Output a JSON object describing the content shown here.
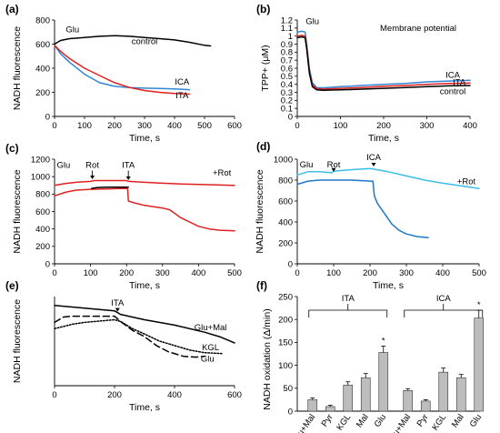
{
  "chart_data": [
    {
      "panel": "(a)",
      "type": "line",
      "xlabel": "Time, s",
      "ylabel": "NADH fluorescence",
      "xlim": [
        0,
        600
      ],
      "ylim": [
        0,
        800
      ],
      "xticks": [
        0,
        100,
        200,
        300,
        400,
        500,
        600
      ],
      "yticks": [
        0,
        200,
        400,
        600,
        800
      ],
      "annotations": [
        {
          "text": "Glu",
          "x": 60,
          "y": 700
        }
      ],
      "series": [
        {
          "name": "control",
          "color": "#000000",
          "label_at": [
            300,
            600
          ],
          "points": [
            [
              0,
              600
            ],
            [
              20,
              630
            ],
            [
              50,
              645
            ],
            [
              100,
              655
            ],
            [
              150,
              665
            ],
            [
              200,
              670
            ],
            [
              250,
              665
            ],
            [
              300,
              655
            ],
            [
              350,
              645
            ],
            [
              400,
              635
            ],
            [
              450,
              615
            ],
            [
              500,
              590
            ],
            [
              520,
              585
            ]
          ]
        },
        {
          "name": "ICA",
          "color": "#2f86d4",
          "label_at": [
            425,
            265
          ],
          "points": [
            [
              0,
              590
            ],
            [
              20,
              520
            ],
            [
              50,
              450
            ],
            [
              100,
              350
            ],
            [
              150,
              280
            ],
            [
              200,
              250
            ],
            [
              250,
              240
            ],
            [
              300,
              235
            ],
            [
              350,
              232
            ],
            [
              400,
              228
            ],
            [
              450,
              222
            ]
          ]
        },
        {
          "name": "ITA",
          "color": "#e02020",
          "label_at": [
            425,
            150
          ],
          "points": [
            [
              0,
              590
            ],
            [
              20,
              540
            ],
            [
              50,
              480
            ],
            [
              100,
              400
            ],
            [
              150,
              340
            ],
            [
              200,
              280
            ],
            [
              250,
              240
            ],
            [
              300,
              215
            ],
            [
              350,
              200
            ],
            [
              400,
              190
            ],
            [
              450,
              185
            ]
          ]
        }
      ]
    },
    {
      "panel": "(b)",
      "type": "line",
      "xlabel": "Time, s",
      "ylabel": "TPP+ (μM)",
      "title": "Membrane potential",
      "xlim": [
        0,
        400
      ],
      "ylim": [
        0,
        1.2
      ],
      "xticks": [
        0,
        100,
        200,
        300,
        400
      ],
      "yticks": [
        0,
        0.1,
        0.2,
        0.3,
        0.4,
        0.5,
        0.6,
        0.7,
        0.8,
        0.9,
        1,
        1.1,
        1.2
      ],
      "ytick_labels": [
        "0",
        "0.1",
        "0.2",
        "0.3",
        "0.4",
        "0.5",
        "0.6",
        "0.7",
        "0.8",
        "0.9",
        "1",
        "1.1",
        "1.2"
      ],
      "annotations": [
        {
          "text": "Glu",
          "x": 35,
          "y": 1.15
        }
      ],
      "series": [
        {
          "name": "ICA",
          "color": "#2f86d4",
          "label_at": [
            360,
            0.48
          ],
          "points": [
            [
              0,
              1.05
            ],
            [
              10,
              1.06
            ],
            [
              18,
              1.05
            ],
            [
              22,
              0.9
            ],
            [
              28,
              0.6
            ],
            [
              35,
              0.42
            ],
            [
              45,
              0.36
            ],
            [
              60,
              0.355
            ],
            [
              100,
              0.37
            ],
            [
              150,
              0.385
            ],
            [
              200,
              0.4
            ],
            [
              250,
              0.41
            ],
            [
              300,
              0.43
            ],
            [
              350,
              0.44
            ],
            [
              400,
              0.45
            ]
          ]
        },
        {
          "name": "ITA",
          "color": "#e02020",
          "label_at": [
            375,
            0.39
          ],
          "points": [
            [
              0,
              1.0
            ],
            [
              10,
              1.01
            ],
            [
              18,
              1.0
            ],
            [
              22,
              0.86
            ],
            [
              28,
              0.56
            ],
            [
              35,
              0.39
            ],
            [
              45,
              0.345
            ],
            [
              60,
              0.34
            ],
            [
              100,
              0.35
            ],
            [
              150,
              0.36
            ],
            [
              200,
              0.375
            ],
            [
              250,
              0.385
            ],
            [
              300,
              0.4
            ],
            [
              350,
              0.41
            ],
            [
              400,
              0.415
            ]
          ]
        },
        {
          "name": "control",
          "color": "#000000",
          "label_at": [
            360,
            0.28
          ],
          "points": [
            [
              0,
              0.98
            ],
            [
              10,
              0.99
            ],
            [
              18,
              0.98
            ],
            [
              22,
              0.84
            ],
            [
              28,
              0.54
            ],
            [
              35,
              0.37
            ],
            [
              45,
              0.33
            ],
            [
              60,
              0.325
            ],
            [
              100,
              0.33
            ],
            [
              150,
              0.34
            ],
            [
              200,
              0.35
            ],
            [
              250,
              0.36
            ],
            [
              300,
              0.37
            ],
            [
              350,
              0.38
            ],
            [
              400,
              0.385
            ]
          ]
        }
      ]
    },
    {
      "panel": "(c)",
      "type": "line",
      "xlabel": "Time, s",
      "ylabel": "NADH fluorescence",
      "xlim": [
        0,
        500
      ],
      "ylim": [
        0,
        1200
      ],
      "xticks": [
        0,
        100,
        200,
        300,
        400,
        500
      ],
      "yticks": [
        0,
        200,
        400,
        600,
        800,
        1000,
        1200
      ],
      "annotations": [
        {
          "text": "Glu",
          "x": 25,
          "y": 1100
        },
        {
          "text": "Rot",
          "x": 105,
          "y": 1100,
          "arrow_to": [
            105,
            970
          ]
        },
        {
          "text": "ITA",
          "x": 205,
          "y": 1100,
          "arrow_to": [
            205,
            960
          ]
        },
        {
          "text": "+Rot",
          "x": 465,
          "y": 1010
        }
      ],
      "series": [
        {
          "name": "+Rot",
          "color": "#e02020",
          "points": [
            [
              0,
              900
            ],
            [
              30,
              920
            ],
            [
              60,
              935
            ],
            [
              100,
              945
            ],
            [
              110,
              955
            ],
            [
              150,
              955
            ],
            [
              200,
              955
            ],
            [
              205,
              945
            ],
            [
              250,
              935
            ],
            [
              300,
              925
            ],
            [
              350,
              915
            ],
            [
              400,
              910
            ],
            [
              450,
              905
            ],
            [
              500,
              900
            ]
          ]
        },
        {
          "name": "",
          "color": "#e02020",
          "points": [
            [
              0,
              780
            ],
            [
              30,
              820
            ],
            [
              60,
              845
            ],
            [
              100,
              855
            ],
            [
              150,
              860
            ],
            [
              200,
              865
            ],
            [
              203,
              860
            ],
            [
              205,
              720
            ],
            [
              220,
              700
            ],
            [
              250,
              670
            ],
            [
              300,
              640
            ],
            [
              320,
              620
            ],
            [
              350,
              530
            ],
            [
              380,
              470
            ],
            [
              400,
              430
            ],
            [
              430,
              400
            ],
            [
              460,
              385
            ],
            [
              500,
              378
            ]
          ]
        },
        {
          "name": "",
          "color": "#000000",
          "points": [
            [
              103,
              865
            ],
            [
              120,
              875
            ],
            [
              150,
              880
            ],
            [
              200,
              880
            ],
            [
              205,
              880
            ]
          ]
        }
      ]
    },
    {
      "panel": "(d)",
      "type": "line",
      "xlabel": "Time, s",
      "ylabel": "NADH fluorescence",
      "xlim": [
        0,
        500
      ],
      "ylim": [
        0,
        1000
      ],
      "xticks": [
        0,
        100,
        200,
        300,
        400,
        500
      ],
      "yticks": [
        0,
        200,
        400,
        600,
        800,
        1000
      ],
      "annotations": [
        {
          "text": "Glu",
          "x": 25,
          "y": 920
        },
        {
          "text": "Rot",
          "x": 100,
          "y": 920,
          "arrow_to": [
            100,
            880
          ]
        },
        {
          "text": "ICA",
          "x": 210,
          "y": 990,
          "arrow_to": [
            210,
            930
          ]
        },
        {
          "text": "+Rot",
          "x": 465,
          "y": 760
        }
      ],
      "series": [
        {
          "name": "+Rot",
          "color": "#3dbde8",
          "points": [
            [
              0,
              850
            ],
            [
              30,
              880
            ],
            [
              60,
              880
            ],
            [
              95,
              870
            ],
            [
              100,
              885
            ],
            [
              150,
              900
            ],
            [
              200,
              910
            ],
            [
              210,
              905
            ],
            [
              250,
              880
            ],
            [
              300,
              840
            ],
            [
              350,
              800
            ],
            [
              400,
              770
            ],
            [
              450,
              745
            ],
            [
              500,
              720
            ]
          ]
        },
        {
          "name": "",
          "color": "#1f78c8",
          "points": [
            [
              0,
              760
            ],
            [
              30,
              790
            ],
            [
              60,
              800
            ],
            [
              100,
              800
            ],
            [
              150,
              800
            ],
            [
              200,
              790
            ],
            [
              208,
              790
            ],
            [
              212,
              650
            ],
            [
              220,
              580
            ],
            [
              240,
              480
            ],
            [
              260,
              380
            ],
            [
              280,
              320
            ],
            [
              300,
              285
            ],
            [
              330,
              260
            ],
            [
              360,
              250
            ]
          ]
        }
      ]
    },
    {
      "panel": "(e)",
      "type": "line",
      "xlabel": "Time, s",
      "ylabel": "NADH fluorescence",
      "xlim": [
        0,
        600
      ],
      "xticks": [
        0,
        200,
        400,
        600
      ],
      "yticks": [],
      "annotations": [
        {
          "text": "ITA",
          "x": 210,
          "y": 0.9,
          "arrow_to": [
            210,
            0.83
          ]
        }
      ],
      "series": [
        {
          "name": "Glu+Mal",
          "color": "#000000",
          "dash": "solid",
          "label_at": [
            520,
            0.62
          ],
          "points": [
            [
              0,
              0.9
            ],
            [
              100,
              0.87
            ],
            [
              200,
              0.84
            ],
            [
              220,
              0.8
            ],
            [
              300,
              0.74
            ],
            [
              400,
              0.68
            ],
            [
              500,
              0.6
            ],
            [
              550,
              0.55
            ],
            [
              600,
              0.48
            ]
          ]
        },
        {
          "name": "KGL",
          "color": "#000000",
          "dash": "dotted",
          "label_at": [
            520,
            0.4
          ],
          "points": [
            [
              0,
              0.64
            ],
            [
              60,
              0.69
            ],
            [
              100,
              0.71
            ],
            [
              200,
              0.74
            ],
            [
              220,
              0.72
            ],
            [
              260,
              0.64
            ],
            [
              300,
              0.58
            ],
            [
              350,
              0.5
            ],
            [
              400,
              0.45
            ],
            [
              450,
              0.4
            ],
            [
              500,
              0.37
            ],
            [
              560,
              0.36
            ]
          ]
        },
        {
          "name": "Glu",
          "color": "#000000",
          "dash": "dashed",
          "label_at": [
            510,
            0.27
          ],
          "points": [
            [
              0,
              0.71
            ],
            [
              30,
              0.77
            ],
            [
              60,
              0.78
            ],
            [
              100,
              0.78
            ],
            [
              200,
              0.78
            ],
            [
              220,
              0.72
            ],
            [
              260,
              0.62
            ],
            [
              300,
              0.55
            ],
            [
              340,
              0.45
            ],
            [
              380,
              0.38
            ],
            [
              430,
              0.33
            ],
            [
              470,
              0.32
            ],
            [
              500,
              0.33
            ]
          ]
        }
      ]
    },
    {
      "panel": "(f)",
      "type": "bar",
      "ylabel": "NADH oxidation (Δ/min)",
      "ylim": [
        0,
        250
      ],
      "yticks": [
        0,
        50,
        100,
        150,
        200,
        250
      ],
      "groups": [
        {
          "label": "ITA",
          "categories": [
            "Glu+Mal",
            "Pyr",
            "KGL",
            "Mal",
            "Glu"
          ],
          "values": [
            25,
            10,
            57,
            73,
            128
          ],
          "errors": [
            4,
            3,
            7,
            9,
            14
          ],
          "significant": [
            false,
            false,
            false,
            false,
            true
          ]
        },
        {
          "label": "ICA",
          "categories": [
            "Glu+Mal",
            "Pyr",
            "KGL",
            "Mal",
            "Glu"
          ],
          "values": [
            45,
            22,
            85,
            73,
            203
          ],
          "errors": [
            4,
            3,
            9,
            7,
            17
          ],
          "significant": [
            false,
            false,
            false,
            false,
            true
          ]
        }
      ],
      "significance_marker": "*"
    }
  ]
}
